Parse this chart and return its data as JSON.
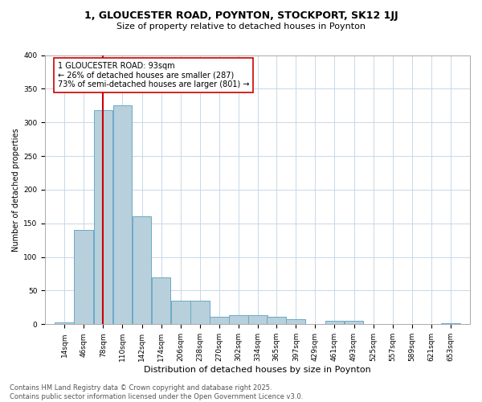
{
  "title": "1, GLOUCESTER ROAD, POYNTON, STOCKPORT, SK12 1JJ",
  "subtitle": "Size of property relative to detached houses in Poynton",
  "xlabel": "Distribution of detached houses by size in Poynton",
  "ylabel": "Number of detached properties",
  "bar_color": "#B8D0DC",
  "bar_edge_color": "#6AAAC8",
  "background_color": "#FFFFFF",
  "grid_color": "#C8D8E8",
  "annotation_box_color": "#CC0000",
  "annotation_text": "1 GLOUCESTER ROAD: 93sqm\n← 26% of detached houses are smaller (287)\n73% of semi-detached houses are larger (801) →",
  "property_line_x": 93,
  "property_line_color": "#CC0000",
  "bins_left": [
    14,
    46,
    78,
    110,
    142,
    174,
    206,
    238,
    270,
    302,
    334,
    365,
    397,
    429,
    461,
    493,
    525,
    557,
    589,
    621,
    653
  ],
  "bar_heights": [
    3,
    140,
    318,
    325,
    160,
    70,
    35,
    35,
    11,
    14,
    14,
    11,
    7,
    0,
    5,
    5,
    1,
    0,
    0,
    0,
    2
  ],
  "ylim": [
    0,
    400
  ],
  "yticks": [
    0,
    50,
    100,
    150,
    200,
    250,
    300,
    350,
    400
  ],
  "footer_text": "Contains HM Land Registry data © Crown copyright and database right 2025.\nContains public sector information licensed under the Open Government Licence v3.0.",
  "figsize": [
    6.0,
    5.0
  ],
  "dpi": 100,
  "title_fontsize": 9,
  "subtitle_fontsize": 8,
  "xlabel_fontsize": 8,
  "ylabel_fontsize": 7,
  "tick_fontsize": 6.5,
  "footer_fontsize": 6,
  "annotation_fontsize": 7
}
